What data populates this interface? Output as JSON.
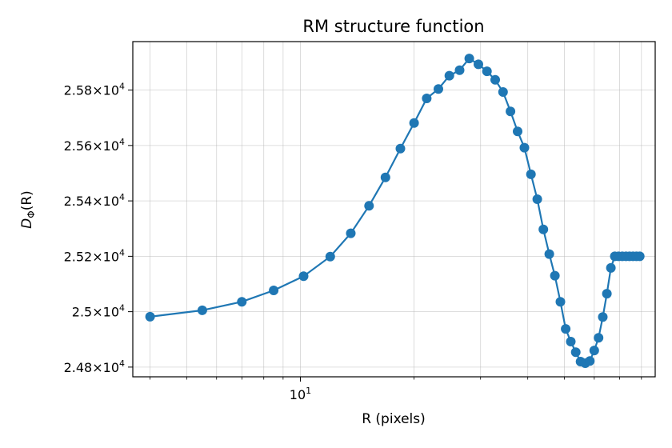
{
  "chart_data": {
    "type": "line",
    "title": "RM structure function",
    "xlabel": "R (pixels)",
    "ylabel": "D_Φ(R)",
    "ylabel_symbol": "D",
    "ylabel_subscript": "Φ",
    "ylabel_suffix": "(R)",
    "x_scale": "log",
    "xlim": [
      3.6,
      87
    ],
    "ylim": [
      24765,
      25975
    ],
    "grid": true,
    "marker": "circle",
    "color": "#1f77b4",
    "x_ticks": [
      {
        "value": 10,
        "base": "10",
        "exp": "1"
      }
    ],
    "y_ticks": [
      {
        "value": 24800,
        "mantissa": "2.48",
        "base": "10",
        "exp": "4"
      },
      {
        "value": 25000,
        "mantissa": "2.5",
        "base": "10",
        "exp": "4"
      },
      {
        "value": 25200,
        "mantissa": "2.52",
        "base": "10",
        "exp": "4"
      },
      {
        "value": 25400,
        "mantissa": "2.54",
        "base": "10",
        "exp": "4"
      },
      {
        "value": 25600,
        "mantissa": "2.56",
        "base": "10",
        "exp": "4"
      },
      {
        "value": 25800,
        "mantissa": "2.58",
        "base": "10",
        "exp": "4"
      }
    ],
    "series": [
      {
        "x": [
          4.0,
          5.5,
          7.0,
          8.5,
          10.2,
          12.0,
          13.6,
          15.2,
          16.8,
          18.4,
          20.0,
          21.6,
          23.2,
          24.8,
          26.4,
          28.0,
          29.6,
          31.2,
          32.8,
          34.4,
          36.0,
          37.6,
          39.2,
          40.8,
          42.4,
          44.0,
          45.6,
          47.2,
          48.8,
          50.4,
          52.0,
          53.6,
          55.2,
          56.8,
          58.4,
          60.0,
          61.6,
          63.2,
          64.8,
          66.4,
          68.0,
          69.6,
          71.2,
          72.8,
          74.4,
          76.0,
          77.6,
          79.2
        ],
        "y": [
          24982,
          25005,
          25036,
          25077,
          25128,
          25199,
          25283,
          25382,
          25485,
          25589,
          25681,
          25770,
          25804,
          25852,
          25872,
          25914,
          25893,
          25868,
          25837,
          25793,
          25723,
          25651,
          25592,
          25496,
          25406,
          25297,
          25208,
          25130,
          25036,
          24938,
          24892,
          24854,
          24820,
          24814,
          24822,
          24860,
          24906,
          24981,
          25065,
          25158,
          25200,
          25200,
          25200,
          25200,
          25200,
          25200,
          25200,
          25200
        ]
      }
    ]
  }
}
